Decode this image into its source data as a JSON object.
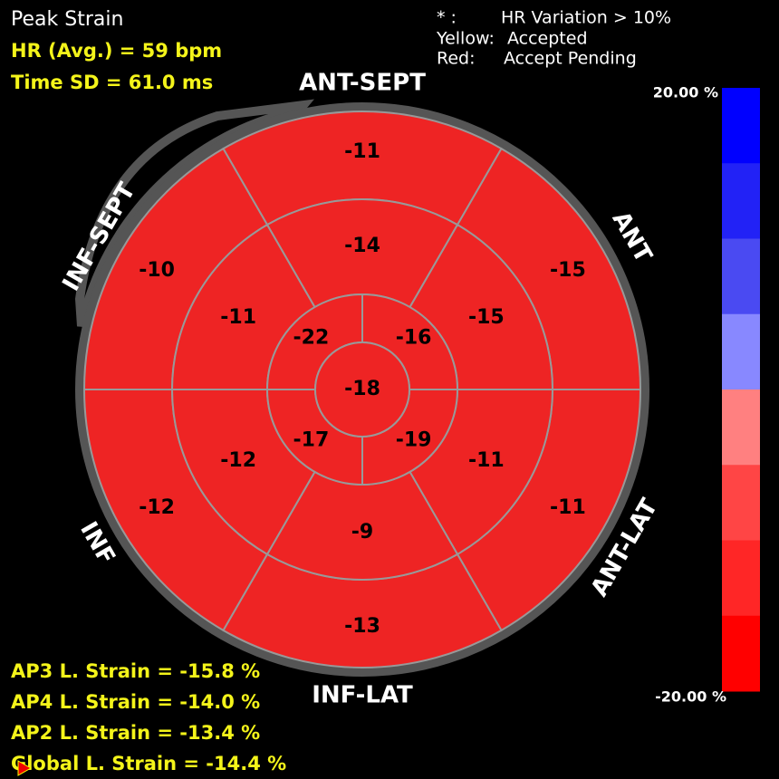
{
  "header": {
    "title": "Peak Strain",
    "hr": "HR (Avg.) = 59 bpm",
    "time_sd": "Time SD = 61.0 ms"
  },
  "legend": [
    [
      "* :",
      "HR Variation > 10%"
    ],
    [
      "Yellow:",
      "Accepted"
    ],
    [
      "Red:",
      "Accept Pending"
    ]
  ],
  "walls": [
    "ANT-SEPT",
    "ANT",
    "ANT-LAT",
    "INF-LAT",
    "INF",
    "INF-SEPT"
  ],
  "segments": {
    "basal": [
      -11,
      -15,
      -11,
      -13,
      -12,
      -10
    ],
    "mid": [
      -14,
      -15,
      -11,
      -9,
      -12,
      -11
    ],
    "apical": [
      -16,
      -19,
      -17,
      -22
    ],
    "apex": -18
  },
  "color_bar": {
    "top_label": "20.00 %",
    "bottom_label": "-20.00 %"
  },
  "strains": [
    "AP3 L. Strain = -15.8 %",
    "AP4 L. Strain = -14.0 %",
    "AP2 L. Strain = -13.4 %",
    "Global L. Strain = -14.4 %"
  ]
}
